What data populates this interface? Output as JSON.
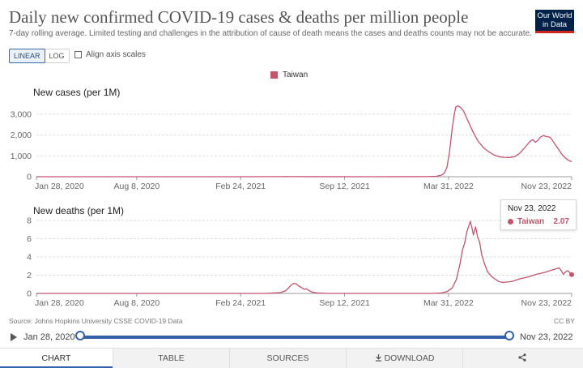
{
  "header": {
    "title": "Daily new confirmed COVID-19 cases & deaths per million people",
    "subtitle": "7-day rolling average. Limited testing and challenges in the attribution of cause of death means the cases and deaths counts may not be accurate.",
    "logo_line1": "Our World",
    "logo_line2": "in Data"
  },
  "controls": {
    "linear_label": "LINEAR",
    "log_label": "LOG",
    "active_scale": "linear",
    "align_label": "Align axis scales",
    "align_checked": false
  },
  "legend": {
    "label": "Taiwan",
    "color": "#c4536c"
  },
  "chart_data": [
    {
      "type": "line",
      "title": "New cases (per 1M)",
      "series_name": "Taiwan",
      "color": "#c4536c",
      "ylim": [
        0,
        3500
      ],
      "y_ticks": [
        "0",
        "1,000",
        "2,000",
        "3,000"
      ],
      "y_tick_values": [
        0,
        1000,
        2000,
        3000
      ],
      "x_ticks": [
        "Jan 28, 2020",
        "Aug 8, 2020",
        "Feb 24, 2021",
        "Sep 12, 2021",
        "Mar 31, 2022",
        "Nov 23, 2022"
      ],
      "x_tick_days": [
        0,
        193,
        393,
        593,
        793,
        1030
      ],
      "grid": true,
      "points": [
        [
          0,
          0
        ],
        [
          400,
          0
        ],
        [
          470,
          5
        ],
        [
          480,
          8
        ],
        [
          490,
          4
        ],
        [
          500,
          2
        ],
        [
          650,
          1
        ],
        [
          750,
          3
        ],
        [
          770,
          20
        ],
        [
          780,
          80
        ],
        [
          785,
          180
        ],
        [
          790,
          450
        ],
        [
          795,
          1200
        ],
        [
          800,
          2300
        ],
        [
          804,
          3000
        ],
        [
          807,
          3350
        ],
        [
          811,
          3400
        ],
        [
          816,
          3330
        ],
        [
          822,
          3150
        ],
        [
          830,
          2700
        ],
        [
          840,
          2150
        ],
        [
          850,
          1700
        ],
        [
          860,
          1400
        ],
        [
          870,
          1200
        ],
        [
          880,
          1050
        ],
        [
          890,
          960
        ],
        [
          900,
          930
        ],
        [
          910,
          920
        ],
        [
          920,
          960
        ],
        [
          930,
          1120
        ],
        [
          940,
          1400
        ],
        [
          950,
          1700
        ],
        [
          955,
          1780
        ],
        [
          960,
          1650
        ],
        [
          965,
          1750
        ],
        [
          970,
          1900
        ],
        [
          976,
          1970
        ],
        [
          982,
          1920
        ],
        [
          988,
          1900
        ],
        [
          992,
          1780
        ],
        [
          998,
          1550
        ],
        [
          1005,
          1300
        ],
        [
          1012,
          1050
        ],
        [
          1018,
          900
        ],
        [
          1024,
          780
        ],
        [
          1030,
          720
        ]
      ]
    },
    {
      "type": "line",
      "title": "New deaths (per 1M)",
      "series_name": "Taiwan",
      "color": "#c4536c",
      "ylim": [
        0,
        8
      ],
      "y_ticks": [
        "0",
        "2",
        "4",
        "6",
        "8"
      ],
      "y_tick_values": [
        0,
        2,
        4,
        6,
        8
      ],
      "x_ticks": [
        "Jan 28, 2020",
        "Aug 8, 2020",
        "Feb 24, 2021",
        "Sep 12, 2021",
        "Mar 31, 2022",
        "Nov 23, 2022"
      ],
      "x_tick_days": [
        0,
        193,
        393,
        593,
        793,
        1030
      ],
      "grid": true,
      "points": [
        [
          0,
          0
        ],
        [
          440,
          0
        ],
        [
          470,
          0.1
        ],
        [
          480,
          0.3
        ],
        [
          485,
          0.6
        ],
        [
          490,
          0.9
        ],
        [
          495,
          1.1
        ],
        [
          500,
          1.05
        ],
        [
          505,
          0.8
        ],
        [
          510,
          0.65
        ],
        [
          515,
          0.45
        ],
        [
          520,
          0.5
        ],
        [
          525,
          0.3
        ],
        [
          530,
          0.15
        ],
        [
          540,
          0.05
        ],
        [
          560,
          0
        ],
        [
          760,
          0
        ],
        [
          780,
          0.05
        ],
        [
          790,
          0.2
        ],
        [
          800,
          0.6
        ],
        [
          808,
          1.5
        ],
        [
          815,
          3.2
        ],
        [
          820,
          4.8
        ],
        [
          824,
          5.5
        ],
        [
          828,
          6.7
        ],
        [
          832,
          7.4
        ],
        [
          835,
          7.9
        ],
        [
          838,
          7.2
        ],
        [
          841,
          6.4
        ],
        [
          845,
          7.3
        ],
        [
          849,
          6.2
        ],
        [
          853,
          5.6
        ],
        [
          857,
          4.2
        ],
        [
          862,
          3.3
        ],
        [
          868,
          2.4
        ],
        [
          875,
          1.9
        ],
        [
          882,
          1.6
        ],
        [
          890,
          1.3
        ],
        [
          898,
          1.2
        ],
        [
          906,
          1.25
        ],
        [
          914,
          1.3
        ],
        [
          922,
          1.45
        ],
        [
          930,
          1.6
        ],
        [
          938,
          1.7
        ],
        [
          946,
          1.8
        ],
        [
          954,
          1.95
        ],
        [
          962,
          2.1
        ],
        [
          970,
          2.2
        ],
        [
          978,
          2.3
        ],
        [
          986,
          2.45
        ],
        [
          994,
          2.6
        ],
        [
          1000,
          2.7
        ],
        [
          1006,
          2.8
        ],
        [
          1010,
          2.5
        ],
        [
          1014,
          2.1
        ],
        [
          1018,
          2.35
        ],
        [
          1022,
          2.5
        ],
        [
          1026,
          2.3
        ],
        [
          1030,
          2.07
        ]
      ]
    }
  ],
  "tooltip": {
    "date": "Nov 23, 2022",
    "entity": "Taiwan",
    "value": "2.07"
  },
  "footer": {
    "source": "Source: Johns Hopkins University CSSE COVID-19 Data",
    "license": "CC BY"
  },
  "timeline": {
    "start": "Jan 28, 2020",
    "end": "Nov 23, 2022",
    "start_fraction": 0,
    "end_fraction": 1
  },
  "tabs": [
    {
      "label": "CHART",
      "active": true
    },
    {
      "label": "TABLE",
      "active": false
    },
    {
      "label": "SOURCES",
      "active": false
    },
    {
      "label": "DOWNLOAD",
      "active": false
    }
  ]
}
